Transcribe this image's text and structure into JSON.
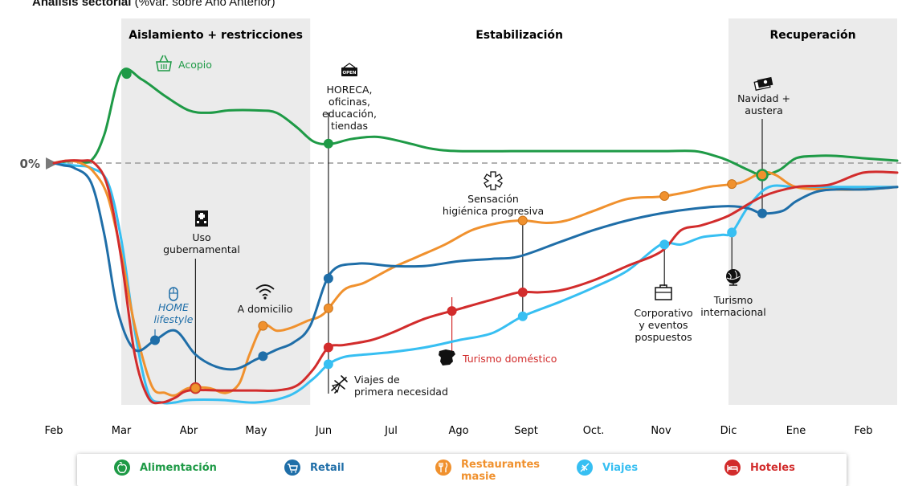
{
  "header": {
    "title_bold": "Análisis sectorial",
    "title_rest": " (%var. sobre Año Anterior)"
  },
  "phases": [
    {
      "label": "Aislamiento + restricciones",
      "from": 1,
      "to": 3.8,
      "shaded": true
    },
    {
      "label": "Estabilización",
      "from": 3.8,
      "to": 10,
      "shaded": false
    },
    {
      "label": "Recuperación",
      "from": 10,
      "to": 12.5,
      "shaded": true
    }
  ],
  "zero_label": "0%",
  "colors": {
    "alimentacion": "#1e9a46",
    "retail": "#1f6ea8",
    "restaurantes": "#f0912e",
    "viajes": "#37bff2",
    "hoteles": "#d22c2c",
    "phase_bg": "#ebebeb"
  },
  "chart_data": {
    "type": "line",
    "title": "Análisis sectorial (%var. sobre Año Anterior)",
    "xlabel": "",
    "ylabel": "",
    "x_ticks": [
      "Feb",
      "Mar",
      "Abr",
      "May",
      "Jun",
      "Jul",
      "Ago",
      "Sept",
      "Oct.",
      "Nov",
      "Dic",
      "Ene",
      "Feb"
    ],
    "xlim": [
      0,
      12.5
    ],
    "ylim": [
      -100,
      42
    ],
    "y_zero_line": "dashed",
    "grid": false,
    "legend_position": "bottom",
    "series": [
      {
        "key": "alimentacion",
        "name": "Alimentación",
        "x": [
          0,
          0.3,
          0.55,
          0.75,
          1.0,
          1.3,
          1.65,
          2.0,
          2.3,
          2.6,
          3.0,
          3.3,
          3.6,
          3.85,
          4.1,
          4.4,
          4.75,
          5.0,
          5.3,
          5.6,
          6.0,
          7.0,
          8.0,
          9.0,
          9.5,
          9.8,
          10.0,
          10.3,
          10.5,
          10.75,
          11.0,
          11.3,
          11.6,
          12.0,
          12.5
        ],
        "y": [
          0,
          1,
          1,
          12,
          38,
          35,
          28,
          22,
          21,
          22,
          22,
          21,
          15,
          9,
          8,
          10,
          11,
          10,
          8,
          6,
          5,
          5,
          5,
          5,
          5,
          3,
          1,
          -3,
          -5,
          -3,
          2,
          3,
          3,
          2,
          1
        ]
      },
      {
        "key": "retail",
        "name": "Retail",
        "x": [
          0,
          0.15,
          0.3,
          0.55,
          0.75,
          0.95,
          1.2,
          1.5,
          1.8,
          2.1,
          2.4,
          2.7,
          3.0,
          3.3,
          3.55,
          3.8,
          4.1,
          4.5,
          5.0,
          5.5,
          6.0,
          6.5,
          6.9,
          7.5,
          8.0,
          8.5,
          9.0,
          9.5,
          10.0,
          10.3,
          10.5,
          10.8,
          11.0,
          11.3,
          11.6,
          12.0,
          12.5
        ],
        "y": [
          0,
          -1,
          -2,
          -8,
          -30,
          -62,
          -78,
          -74,
          -70,
          -80,
          -85,
          -86,
          -82,
          -78,
          -75,
          -68,
          -46,
          -42,
          -43,
          -43,
          -41,
          -40,
          -39,
          -33,
          -28,
          -24,
          -21,
          -19,
          -18,
          -19,
          -21,
          -20,
          -16,
          -12,
          -11,
          -11,
          -10
        ]
      },
      {
        "key": "restaurantes",
        "name": "Restaurantes",
        "x": [
          0,
          0.2,
          0.4,
          0.6,
          0.8,
          1.0,
          1.2,
          1.45,
          1.65,
          1.8,
          2.0,
          2.3,
          2.55,
          2.75,
          2.9,
          3.1,
          3.3,
          3.5,
          3.75,
          4.0,
          4.3,
          4.6,
          5.0,
          5.4,
          5.8,
          6.2,
          6.6,
          6.95,
          7.3,
          7.6,
          8.0,
          8.5,
          9.0,
          9.4,
          9.7,
          10.0,
          10.2,
          10.5,
          10.7,
          11.0,
          11.5,
          12.0,
          12.5
        ],
        "y": [
          0,
          1,
          0,
          -4,
          -14,
          -38,
          -68,
          -93,
          -96,
          -97,
          -94,
          -94,
          -96,
          -92,
          -80,
          -68,
          -70,
          -69,
          -66,
          -63,
          -53,
          -50,
          -44,
          -39,
          -34,
          -28,
          -25,
          -24,
          -25,
          -24,
          -20,
          -15,
          -14,
          -12,
          -10,
          -9,
          -8,
          -4,
          -5,
          -10,
          -11,
          -11,
          -10
        ]
      },
      {
        "key": "viajes",
        "name": "Viajes",
        "x": [
          0,
          0.3,
          0.55,
          0.8,
          1.0,
          1.2,
          1.4,
          1.6,
          1.8,
          2.0,
          2.5,
          3.0,
          3.5,
          3.85,
          4.07,
          4.3,
          4.6,
          5.0,
          5.5,
          6.0,
          6.5,
          6.95,
          7.5,
          8.0,
          8.5,
          9.0,
          9.3,
          9.6,
          9.9,
          10.05,
          10.3,
          10.6,
          11.0,
          11.5,
          12.0,
          12.5
        ],
        "y": [
          0,
          -1,
          -2,
          -8,
          -32,
          -70,
          -96,
          -100,
          -100,
          -99,
          -99,
          -100,
          -97,
          -90,
          -84,
          -81,
          -80,
          -79,
          -77,
          -74,
          -71,
          -64,
          -58,
          -52,
          -45,
          -34,
          -34,
          -31,
          -30,
          -29,
          -18,
          -10,
          -10,
          -10,
          -10,
          -10
        ]
      },
      {
        "key": "hoteles",
        "name": "Hoteles",
        "x": [
          0,
          0.2,
          0.4,
          0.6,
          0.8,
          1.0,
          1.2,
          1.4,
          1.6,
          1.8,
          2.0,
          2.5,
          3.0,
          3.3,
          3.6,
          3.85,
          4.07,
          4.3,
          4.7,
          5.0,
          5.5,
          6.0,
          6.5,
          6.9,
          7.2,
          7.54,
          8.0,
          8.5,
          9.0,
          9.3,
          9.6,
          10.0,
          10.5,
          11.0,
          11.5,
          12.0,
          12.5
        ],
        "y": [
          0,
          1,
          1,
          0,
          -10,
          -40,
          -80,
          -98,
          -100,
          -98,
          -95,
          -95,
          -95,
          -95,
          -93,
          -86,
          -77,
          -76,
          -74,
          -71,
          -65,
          -61,
          -57,
          -54,
          -54,
          -53,
          -49,
          -43,
          -37,
          -28,
          -26,
          -22,
          -14,
          -10,
          -9,
          -4,
          -4
        ]
      }
    ],
    "markers": [
      {
        "series": "alimentacion",
        "x": 1.08
      },
      {
        "series": "alimentacion",
        "x": 4.07
      },
      {
        "series": "alimentacion",
        "x": 10.5,
        "orange_fill": true
      },
      {
        "series": "retail",
        "x": 1.5
      },
      {
        "series": "retail",
        "x": 3.1
      },
      {
        "series": "retail",
        "x": 4.07
      },
      {
        "series": "retail",
        "x": 10.5
      },
      {
        "series": "restaurantes",
        "x": 2.1
      },
      {
        "series": "restaurantes",
        "x": 3.1
      },
      {
        "series": "restaurantes",
        "x": 4.07
      },
      {
        "series": "restaurantes",
        "x": 6.95
      },
      {
        "series": "restaurantes",
        "x": 9.05
      },
      {
        "series": "restaurantes",
        "x": 10.05
      },
      {
        "series": "viajes",
        "x": 4.07
      },
      {
        "series": "viajes",
        "x": 6.95
      },
      {
        "series": "viajes",
        "x": 9.05
      },
      {
        "series": "viajes",
        "x": 10.05
      },
      {
        "series": "hoteles",
        "x": 4.07
      },
      {
        "series": "hoteles",
        "x": 5.9
      },
      {
        "series": "hoteles",
        "x": 6.95
      }
    ],
    "annotations": [
      {
        "id": "acopio",
        "lines": [
          "Acopio"
        ],
        "color": "#1e9a46",
        "icon": "basket-icon",
        "anchor": "start"
      },
      {
        "id": "horeca",
        "lines": [
          "HORECA,",
          "oficinas,",
          "educación,",
          "tiendas"
        ],
        "color": "#111111",
        "icon": "open-sign-icon",
        "anchor": "middle"
      },
      {
        "id": "uso",
        "lines": [
          "Uso",
          "gubernamental"
        ],
        "color": "#111111",
        "icon": "hospital-icon",
        "anchor": "middle"
      },
      {
        "id": "home",
        "lines": [
          "HOME",
          "lifestyle"
        ],
        "color": "#1f6ea8",
        "icon": "mouse-icon",
        "anchor": "middle",
        "italic": true
      },
      {
        "id": "domicilio",
        "lines": [
          "A domicilio"
        ],
        "color": "#111111",
        "icon": "wifi-icon",
        "anchor": "middle"
      },
      {
        "id": "sensacion",
        "lines": [
          "Sensación",
          "higiénica progresiva"
        ],
        "color": "#111111",
        "icon": "hygiene-icon",
        "anchor": "middle"
      },
      {
        "id": "turdom",
        "lines": [
          "Turismo doméstico"
        ],
        "color": "#d22c2c",
        "icon": "spain-map-icon",
        "anchor": "start"
      },
      {
        "id": "viajespn",
        "lines": [
          "Viajes de",
          "primera necesidad"
        ],
        "color": "#111111",
        "icon": "plane-icon",
        "anchor": "start"
      },
      {
        "id": "corporativo",
        "lines": [
          "Corporativo",
          "y eventos",
          "pospuestos"
        ],
        "color": "#111111",
        "icon": "briefcase-icon",
        "anchor": "middle"
      },
      {
        "id": "turint",
        "lines": [
          "Turismo",
          "internacional"
        ],
        "color": "#111111",
        "icon": "globe-icon",
        "anchor": "middle"
      },
      {
        "id": "navidad",
        "lines": [
          "Navidad +",
          "austera"
        ],
        "color": "#111111",
        "icon": "money-icon",
        "anchor": "middle"
      }
    ]
  },
  "legend": [
    {
      "label": "Alimentación",
      "color": "#1e9a46",
      "icon": "apple-icon"
    },
    {
      "label": "Retail",
      "color": "#1f6ea8",
      "icon": "cart-icon"
    },
    {
      "label": "Restaurantes",
      "label2": "masie",
      "color": "#f0912e",
      "icon": "cutlery-icon"
    },
    {
      "label": "Viajes",
      "color": "#37bff2",
      "icon": "plane-icon"
    },
    {
      "label": "Hoteles",
      "color": "#d22c2c",
      "icon": "bed-icon"
    }
  ]
}
